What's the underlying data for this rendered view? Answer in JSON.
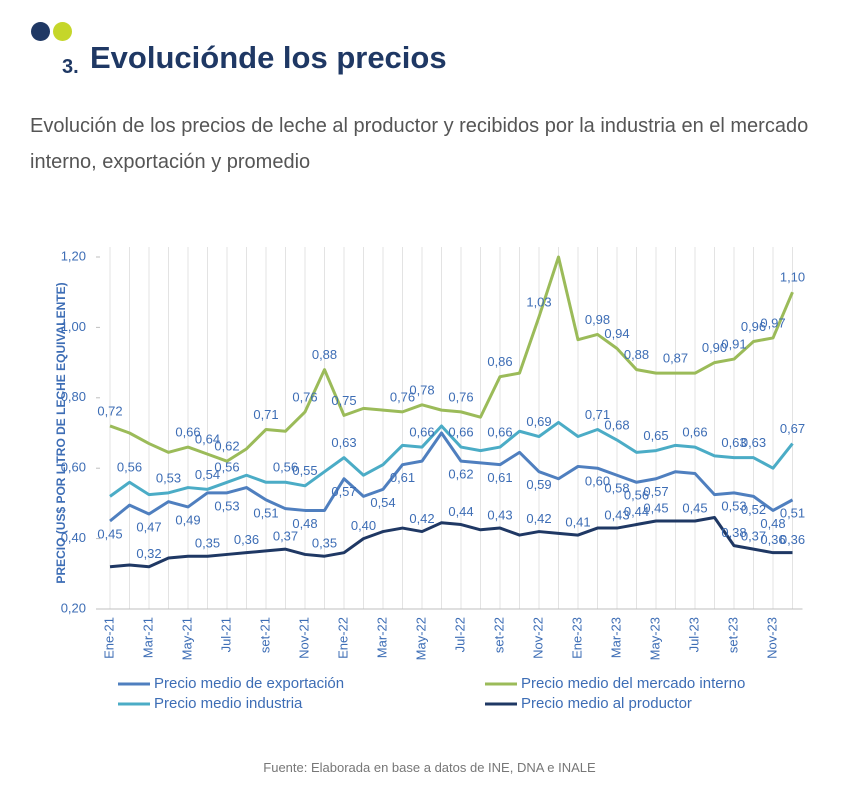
{
  "header": {
    "number": "3.",
    "title": "Evoluciónde los precios"
  },
  "subtitle": "Evolución de los precios de leche al productor y recibidos por la industria en el mercado interno, exportación y promedio",
  "source": "Fuente: Elaborada en base a datos de INE, DNA e INALE",
  "chart_data": {
    "type": "line",
    "y_label": "PRECIO (US$ POR LITRO DE LECHE EQUIVALENTE)",
    "categories": [
      "Ene-21",
      null,
      "Mar-21",
      null,
      "May-21",
      null,
      "Jul-21",
      null,
      "set-21",
      null,
      "Nov-21",
      null,
      "Ene-22",
      null,
      "Mar-22",
      null,
      "May-22",
      null,
      "Jul-22",
      null,
      "set-22",
      null,
      "Nov-22",
      null,
      "Ene-23",
      null,
      "Mar-23",
      null,
      "May-23",
      null,
      "Jul-23",
      null,
      "set-23",
      null,
      "Nov-23",
      null
    ],
    "ylim": [
      0.2,
      1.2
    ],
    "yticks": [
      {
        "value": 0.2,
        "label": "0,20"
      },
      {
        "value": 0.4,
        "label": "0,40"
      },
      {
        "value": 0.6,
        "label": "0,60"
      },
      {
        "value": 0.8,
        "label": "0,80"
      },
      {
        "value": 1.0,
        "label": "1,00"
      },
      {
        "value": 1.2,
        "label": "1,20"
      }
    ],
    "grid": "x",
    "label_color": "#3d6db5",
    "series": [
      {
        "name": "Precio medio de exportación",
        "color": "#4f7fbf",
        "values": [
          0.45,
          0.495,
          0.47,
          0.505,
          0.49,
          0.53,
          0.53,
          0.545,
          0.51,
          0.485,
          0.48,
          0.48,
          0.57,
          0.52,
          0.54,
          0.61,
          0.62,
          0.7,
          0.62,
          0.615,
          0.61,
          0.645,
          0.59,
          0.57,
          0.605,
          0.6,
          0.58,
          0.56,
          0.57,
          0.59,
          0.585,
          0.525,
          0.53,
          0.52,
          0.48,
          0.51
        ],
        "value_labels": [
          "0,45",
          null,
          "0,47",
          null,
          "0,49",
          null,
          "0,53",
          null,
          "0,51",
          null,
          "0,48",
          null,
          "0,57",
          null,
          "0,54",
          "0,61",
          null,
          null,
          "0,62",
          null,
          "0,61",
          null,
          "0,59",
          null,
          null,
          "0,60",
          "0,58",
          "0,56",
          "0,57",
          null,
          null,
          null,
          "0,53",
          "0,52",
          "0,48",
          "0,51"
        ]
      },
      {
        "name": "Precio medio del mercado interno",
        "color": "#9bbb59",
        "values": [
          0.72,
          0.7,
          0.67,
          0.645,
          0.66,
          0.64,
          0.62,
          0.655,
          0.71,
          0.705,
          0.76,
          0.88,
          0.75,
          0.77,
          0.765,
          0.76,
          0.78,
          0.765,
          0.76,
          0.745,
          0.86,
          0.87,
          1.03,
          1.2,
          0.965,
          0.98,
          0.94,
          0.88,
          0.87,
          0.87,
          0.87,
          0.9,
          0.91,
          0.96,
          0.97,
          1.1
        ],
        "value_labels": [
          "0,72",
          null,
          null,
          null,
          "0,66",
          "0,64",
          "0,62",
          null,
          "0,71",
          null,
          "0,76",
          "0,88",
          "0,75",
          null,
          null,
          "0,76",
          "0,78",
          null,
          "0,76",
          null,
          "0,86",
          null,
          "1,03",
          null,
          null,
          "0,98",
          "0,94",
          "0,88",
          null,
          "0,87",
          null,
          "0,90",
          "0,91",
          "0,96",
          "0,97",
          "1,10"
        ]
      },
      {
        "name": "Precio medio industria",
        "color": "#4bacc6",
        "values": [
          0.52,
          0.56,
          0.525,
          0.53,
          0.545,
          0.54,
          0.56,
          0.58,
          0.56,
          0.56,
          0.55,
          0.59,
          0.63,
          0.58,
          0.61,
          0.665,
          0.66,
          0.72,
          0.66,
          0.65,
          0.66,
          0.705,
          0.69,
          0.73,
          0.69,
          0.71,
          0.68,
          0.645,
          0.65,
          0.665,
          0.66,
          0.635,
          0.63,
          0.63,
          0.6,
          0.67
        ],
        "value_labels": [
          null,
          "0,56",
          null,
          "0,53",
          null,
          "0,54",
          "0,56",
          null,
          null,
          "0,56",
          "0,55",
          null,
          "0,63",
          null,
          null,
          null,
          "0,66",
          null,
          "0,66",
          null,
          "0,66",
          null,
          "0,69",
          null,
          null,
          "0,71",
          "0,68",
          null,
          "0,65",
          null,
          "0,66",
          null,
          "0,63",
          "0,63",
          null,
          "0,67"
        ]
      },
      {
        "name": "Precio medio al productor",
        "color": "#1f3864",
        "values": [
          0.32,
          0.325,
          0.32,
          0.345,
          0.35,
          0.35,
          0.355,
          0.36,
          0.365,
          0.37,
          0.355,
          0.35,
          0.36,
          0.4,
          0.42,
          0.43,
          0.42,
          0.445,
          0.44,
          0.425,
          0.43,
          0.41,
          0.42,
          0.415,
          0.41,
          0.43,
          0.43,
          0.44,
          0.45,
          0.45,
          0.45,
          0.46,
          0.38,
          0.37,
          0.36,
          0.36
        ],
        "value_labels": [
          null,
          null,
          "0,32",
          null,
          null,
          "0,35",
          null,
          "0,36",
          null,
          "0,37",
          null,
          "0,35",
          null,
          "0,40",
          null,
          null,
          "0,42",
          null,
          "0,44",
          null,
          "0,43",
          null,
          "0,42",
          null,
          "0,41",
          null,
          "0,43",
          "0,44",
          "0,45",
          null,
          "0,45",
          null,
          "0,38",
          "0,37",
          "0,36",
          "0,36"
        ]
      }
    ]
  }
}
